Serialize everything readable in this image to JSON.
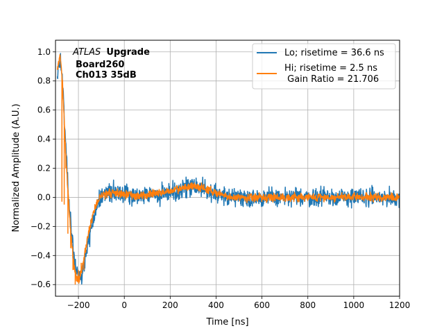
{
  "chart_data": {
    "type": "line",
    "title": "",
    "xlabel": "Time [ns]",
    "ylabel": "Normalized Amplitude (A.U.)",
    "xlim": [
      -300,
      1200
    ],
    "ylim": [
      -0.68,
      1.08
    ],
    "xticks": [
      -200,
      0,
      200,
      400,
      600,
      800,
      1000,
      1200
    ],
    "xtick_labels": [
      "−200",
      "0",
      "200",
      "400",
      "600",
      "800",
      "1000",
      "1200"
    ],
    "yticks": [
      -0.6,
      -0.4,
      -0.2,
      0.0,
      0.2,
      0.4,
      0.6,
      0.8,
      1.0
    ],
    "ytick_labels": [
      "−0.6",
      "−0.4",
      "−0.2",
      "0.0",
      "0.2",
      "0.4",
      "0.6",
      "0.8",
      "1.0"
    ],
    "grid": true,
    "legend_position": "top-right",
    "annotation": {
      "italic": "ATLAS",
      "bold": "Upgrade",
      "line2": "Board260",
      "line3": "Ch013 35dB"
    },
    "series": [
      {
        "name": "Lo; risetime = 36.6 ns",
        "color": "#1f77b4",
        "noise_amplitude": 0.045,
        "x": [
          -290,
          -280,
          -270,
          -260,
          -250,
          -240,
          -230,
          -220,
          -210,
          -200,
          -190,
          -180,
          -170,
          -160,
          -150,
          -140,
          -130,
          -120,
          -110,
          -100,
          -90,
          -80,
          -60,
          -40,
          -20,
          0,
          50,
          100,
          150,
          200,
          250,
          300,
          350,
          400,
          450,
          500,
          600,
          700,
          800,
          900,
          1000,
          1100,
          1200
        ],
        "y": [
          0.85,
          0.95,
          0.8,
          0.5,
          0.2,
          -0.05,
          -0.25,
          -0.42,
          -0.5,
          -0.55,
          -0.55,
          -0.5,
          -0.42,
          -0.33,
          -0.25,
          -0.18,
          -0.12,
          -0.07,
          -0.03,
          0.0,
          0.02,
          0.03,
          0.04,
          0.04,
          0.03,
          0.02,
          0.0,
          0.02,
          0.02,
          0.04,
          0.05,
          0.08,
          0.06,
          0.02,
          0.0,
          0.0,
          0.0,
          0.0,
          0.0,
          0.0,
          0.0,
          0.0,
          0.0
        ]
      },
      {
        "name": "Hi; risetime = 2.5 ns\n Gain Ratio = 21.706",
        "color": "#ff7f0e",
        "noise_amplitude": 0.02,
        "x": [
          -290,
          -280,
          -270,
          -260,
          -250,
          -240,
          -230,
          -220,
          -210,
          -200,
          -190,
          -180,
          -170,
          -160,
          -150,
          -140,
          -130,
          -120,
          -110,
          -100,
          -90,
          -80,
          -60,
          -40,
          -20,
          0,
          50,
          100,
          150,
          200,
          250,
          300,
          350,
          400,
          450,
          500,
          600,
          700,
          800,
          900,
          1000,
          1100,
          1200
        ],
        "y": [
          0.9,
          0.97,
          0.8,
          0.45,
          0.15,
          -0.1,
          -0.3,
          -0.45,
          -0.55,
          -0.57,
          -0.52,
          -0.45,
          -0.37,
          -0.28,
          -0.2,
          -0.14,
          -0.08,
          -0.04,
          -0.01,
          0.01,
          0.02,
          0.03,
          0.03,
          0.03,
          0.02,
          0.02,
          0.01,
          0.02,
          0.03,
          0.04,
          0.06,
          0.08,
          0.06,
          0.03,
          0.0,
          0.0,
          0.0,
          0.0,
          0.0,
          0.0,
          0.0,
          0.0,
          0.0
        ]
      }
    ]
  }
}
